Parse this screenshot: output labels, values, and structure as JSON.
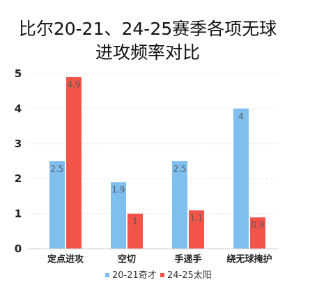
{
  "chart_data": {
    "type": "bar",
    "title": [
      "比尔20-21、24-25赛季各项无球",
      "进攻频率对比"
    ],
    "categories": [
      "定点进攻",
      "空切",
      "手递手",
      "绕无球掩护"
    ],
    "series": [
      {
        "name": "20-21奇才",
        "values": [
          2.5,
          1.9,
          2.5,
          4
        ],
        "labels": [
          "2.5",
          "1.9",
          "2.5",
          "4"
        ],
        "color": "#7fbfef"
      },
      {
        "name": "24-25太阳",
        "values": [
          4.9,
          1,
          1.1,
          0.9
        ],
        "labels": [
          "4.9",
          "1",
          "1.1",
          "0.9"
        ],
        "color": "#f2544a"
      }
    ],
    "yticks": [
      "0",
      "1",
      "2",
      "3",
      "4",
      "5"
    ],
    "ylim": [
      0,
      5
    ],
    "grid": true,
    "legend_position": "bottom",
    "xlabel": "",
    "ylabel": ""
  }
}
